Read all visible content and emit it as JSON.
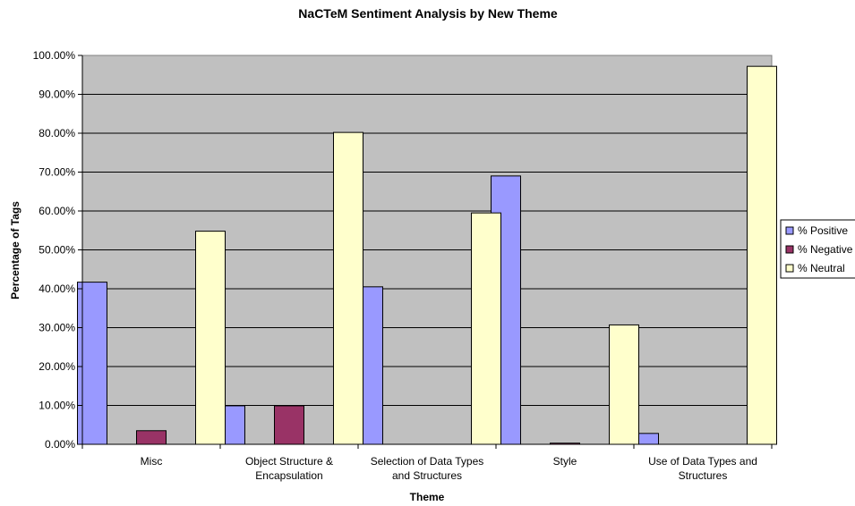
{
  "chart_data": {
    "type": "bar",
    "title": "NaCTeM Sentiment Analysis by New Theme",
    "xlabel": "Theme",
    "ylabel": "Percentage of Tags",
    "ylim": [
      0,
      100
    ],
    "y_ticks": [
      "0.00%",
      "10.00%",
      "20.00%",
      "30.00%",
      "40.00%",
      "50.00%",
      "60.00%",
      "70.00%",
      "80.00%",
      "90.00%",
      "100.00%"
    ],
    "grid": true,
    "legend_position": "right",
    "categories": [
      [
        "Misc"
      ],
      [
        "Object Structure &",
        "Encapsulation"
      ],
      [
        "Selection of Data Types",
        "and Structures"
      ],
      [
        "Style"
      ],
      [
        "Use of Data Types and",
        "Structures"
      ]
    ],
    "series": [
      {
        "name": "% Positive",
        "color": "#9999ff",
        "values": [
          41.7,
          9.9,
          40.5,
          69.0,
          2.8
        ]
      },
      {
        "name": "% Negative",
        "color": "#993366",
        "values": [
          3.5,
          9.9,
          0.0,
          0.3,
          0.0
        ]
      },
      {
        "name": "% Neutral",
        "color": "#ffffcc",
        "values": [
          54.8,
          80.2,
          59.5,
          30.7,
          97.2
        ]
      }
    ],
    "plot_background": "#c0c0c0"
  }
}
